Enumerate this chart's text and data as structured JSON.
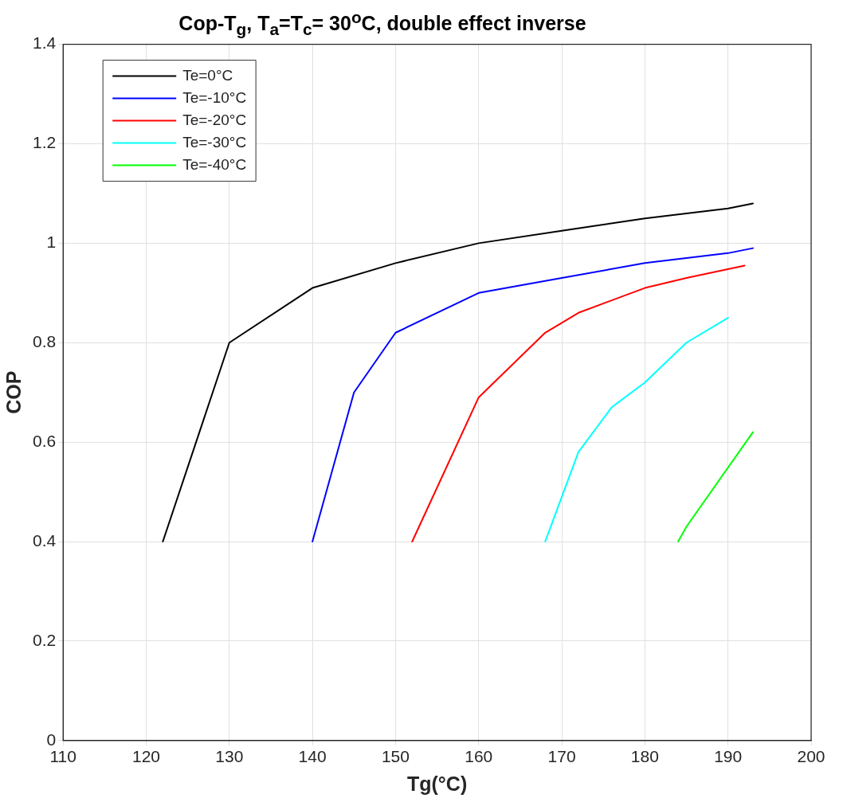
{
  "chart_data": {
    "type": "line",
    "title": "Cop-T$_{g}$, T$_{a}$=T$_{c}$= 30$^{o}$C, double effect inverse",
    "xlabel": "Tg(°C)",
    "ylabel": "COP",
    "xlim": [
      110,
      200
    ],
    "xticks": [
      110,
      120,
      130,
      140,
      150,
      160,
      170,
      180,
      190,
      200
    ],
    "ylim": [
      0,
      1.4
    ],
    "yticks": [
      0,
      0.2,
      0.4,
      0.6,
      0.8,
      1,
      1.2,
      1.4
    ],
    "grid": true,
    "legend": "top left",
    "marker": "none",
    "line_style": "solid",
    "series": [
      {
        "name": "Te=0°C",
        "color": "#000000",
        "x": [
          122,
          130,
          140,
          150,
          160,
          170,
          180,
          190,
          193
        ],
        "values": [
          0.4,
          0.8,
          0.91,
          0.96,
          1.0,
          1.025,
          1.05,
          1.07,
          1.08
        ]
      },
      {
        "name": "Te=-10°C",
        "color": "#0000ff",
        "x": [
          140,
          145,
          150,
          160,
          170,
          180,
          190,
          193
        ],
        "values": [
          0.4,
          0.7,
          0.82,
          0.9,
          0.93,
          0.96,
          0.98,
          0.99
        ]
      },
      {
        "name": "Te=-20°C",
        "color": "#ff0000",
        "x": [
          152,
          160,
          168,
          172,
          180,
          185,
          192
        ],
        "values": [
          0.4,
          0.69,
          0.82,
          0.86,
          0.91,
          0.93,
          0.955
        ]
      },
      {
        "name": "Te=-30°C",
        "color": "#00ffff",
        "x": [
          168,
          172,
          176,
          180,
          185,
          190
        ],
        "values": [
          0.4,
          0.58,
          0.67,
          0.72,
          0.8,
          0.85
        ]
      },
      {
        "name": "Te=-40°C",
        "color": "#00ff00",
        "x": [
          184,
          185,
          193
        ],
        "values": [
          0.4,
          0.43,
          0.62
        ]
      }
    ]
  }
}
